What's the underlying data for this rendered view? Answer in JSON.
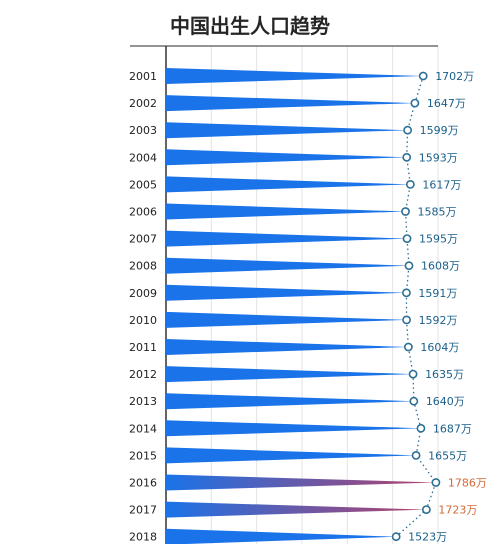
{
  "chart_data": {
    "type": "bar",
    "orientation": "horizontal",
    "title": "中国出生人口趋势",
    "categories": [
      "2001",
      "2002",
      "2003",
      "2004",
      "2005",
      "2006",
      "2007",
      "2008",
      "2009",
      "2010",
      "2011",
      "2012",
      "2013",
      "2014",
      "2015",
      "2016",
      "2017",
      "2018"
    ],
    "values": [
      1702,
      1647,
      1599,
      1593,
      1617,
      1585,
      1595,
      1608,
      1591,
      1592,
      1604,
      1635,
      1640,
      1687,
      1655,
      1786,
      1723,
      1523
    ],
    "value_labels": [
      "1702万",
      "1647万",
      "1599万",
      "1593万",
      "1617万",
      "1585万",
      "1595万",
      "1608万",
      "1591万",
      "1592万",
      "1604万",
      "1635万",
      "1640万",
      "1687万",
      "1655万",
      "1786万",
      "1723万",
      "1523万"
    ],
    "unit": "万",
    "xlim": [
      0,
      1800
    ],
    "grid": true,
    "highlighted_categories": [
      "2016",
      "2017"
    ],
    "colors": {
      "bar": "#1a73e8",
      "bar_highlight": "#b4416a",
      "label": "#1a5f8a",
      "label_highlight": "#d06a3a",
      "point": "#2c6f95"
    }
  }
}
